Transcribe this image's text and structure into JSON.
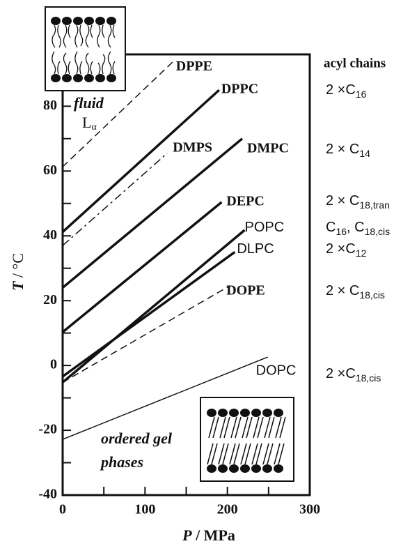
{
  "chart_data": {
    "type": "line",
    "xlabel": {
      "symbol": "P",
      "unit": " / MPa"
    },
    "ylabel": {
      "symbol": "T",
      "unit": " / °C"
    },
    "xlim": [
      0,
      300
    ],
    "xticks": [
      0,
      100,
      200,
      300
    ],
    "xminorticks": [
      50,
      150,
      250
    ],
    "ylim": [
      -40,
      96
    ],
    "yticks": [
      -40,
      -20,
      0,
      20,
      40,
      60,
      80
    ],
    "yminorticks": [
      -30,
      -10,
      10,
      30,
      50,
      70
    ],
    "color": "#111111",
    "series": [
      {
        "name": "DPPE",
        "style": "dashed",
        "width": 1.5,
        "x": [
          0,
          135
        ],
        "values": [
          61.3,
          94
        ]
      },
      {
        "name": "DPPC",
        "style": "solid",
        "width": 3.5,
        "x": [
          0,
          190
        ],
        "values": [
          41.2,
          85
        ]
      },
      {
        "name": "DMPS",
        "style": "dashdot",
        "width": 1.5,
        "x": [
          0,
          127
        ],
        "values": [
          37,
          65.5
        ]
      },
      {
        "name": "DMPC",
        "style": "solid",
        "width": 3.5,
        "x": [
          0,
          218
        ],
        "values": [
          24,
          70
        ]
      },
      {
        "name": "DEPC",
        "style": "solid",
        "width": 3.5,
        "x": [
          0,
          193
        ],
        "values": [
          10.3,
          50.4
        ]
      },
      {
        "name": "POPC",
        "style": "solid",
        "width": 3.5,
        "x": [
          0,
          221
        ],
        "values": [
          -5.2,
          41.8
        ]
      },
      {
        "name": "DLPC",
        "style": "solid",
        "width": 3.5,
        "x": [
          0,
          209
        ],
        "values": [
          -3.4,
          35
        ]
      },
      {
        "name": "DOPE",
        "style": "dashed",
        "width": 1.5,
        "x": [
          0,
          203
        ],
        "values": [
          -5.2,
          24.6
        ]
      },
      {
        "name": "DOPC",
        "style": "solid",
        "width": 1.5,
        "x": [
          0,
          249
        ],
        "values": [
          -22.8,
          2.6
        ]
      }
    ],
    "chain_header": "acyl chains",
    "chain_labels": [
      [
        [
          "2 ×C",
          "16"
        ]
      ],
      [
        [
          "2 × C",
          "14"
        ]
      ],
      [
        [
          "2 × C",
          "18,tran"
        ]
      ],
      [
        [
          "C",
          "16"
        ],
        [
          ", C",
          "18,cis"
        ]
      ],
      [
        [
          "2 ×C",
          "12"
        ]
      ],
      [
        [
          "2 × C",
          "18,cis"
        ]
      ],
      [
        [
          "2 ×C",
          "18,cis"
        ]
      ]
    ],
    "fluid_label": {
      "word": "fluid",
      "symbol": "L",
      "sub": "α"
    },
    "gel_label": [
      "ordered gel",
      "phases"
    ]
  }
}
